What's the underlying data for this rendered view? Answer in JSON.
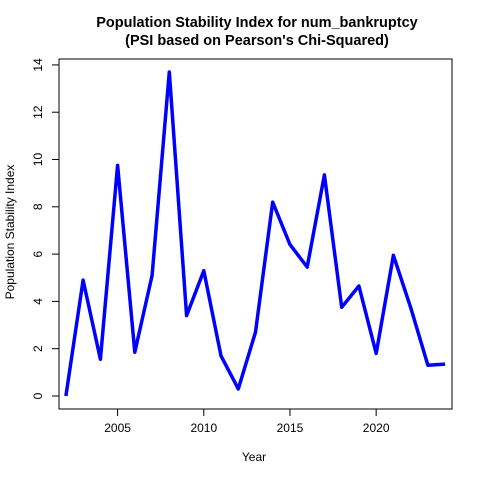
{
  "chart_data": {
    "type": "line",
    "title": "Population Stability Index for num_bankruptcy",
    "subtitle": "(PSI based on Pearson's Chi-Squared)",
    "xlabel": "Year",
    "ylabel": "Population Stability Index",
    "x": [
      2002,
      2003,
      2004,
      2005,
      2006,
      2007,
      2008,
      2009,
      2010,
      2011,
      2012,
      2013,
      2014,
      2015,
      2016,
      2017,
      2018,
      2019,
      2020,
      2021,
      2022,
      2023,
      2024
    ],
    "series": [
      {
        "values": [
          0.0,
          4.9,
          1.55,
          9.75,
          1.85,
          5.1,
          13.7,
          3.4,
          5.3,
          1.7,
          0.3,
          2.7,
          8.2,
          6.4,
          5.45,
          9.35,
          3.75,
          4.65,
          1.8,
          5.95,
          3.75,
          1.3,
          1.35
        ],
        "color": "#0000ff"
      }
    ],
    "xlim": [
      2001.6,
      2024.4
    ],
    "ylim": [
      -0.55,
      14.25
    ],
    "xticks": [
      2005,
      2010,
      2015,
      2020
    ],
    "yticks": [
      0,
      2,
      4,
      6,
      8,
      10,
      12,
      14
    ],
    "grid": false,
    "legend": "none"
  }
}
